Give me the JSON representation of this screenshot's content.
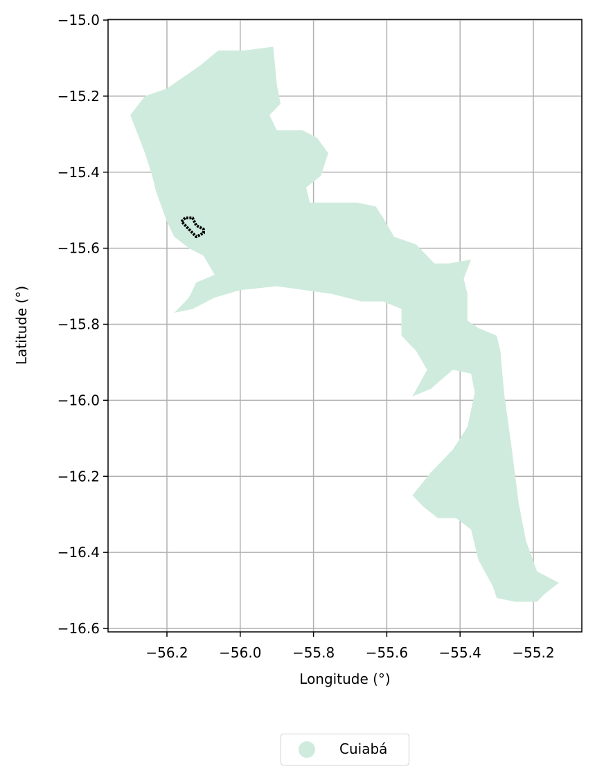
{
  "chart_data": {
    "type": "map",
    "xlabel": "Longitude (°)",
    "ylabel": "Latitude (°)",
    "xlim": [
      -56.37,
      -55.07
    ],
    "ylim": [
      -16.61,
      -15.0
    ],
    "grid": true,
    "x_ticks": [
      -56.2,
      -56.0,
      -55.8,
      -55.6,
      -55.4,
      -55.2
    ],
    "x_tick_labels": [
      "−56.2",
      "−56.0",
      "−55.8",
      "−55.6",
      "−55.4",
      "−55.2"
    ],
    "y_ticks": [
      -15.0,
      -15.2,
      -15.4,
      -15.6,
      -15.8,
      -16.0,
      -16.2,
      -16.4,
      -16.6
    ],
    "y_tick_labels": [
      "−15.0",
      "−15.2",
      "−15.4",
      "−15.6",
      "−15.8",
      "−16.0",
      "−16.2",
      "−16.4",
      "−16.6"
    ],
    "region": {
      "name": "Cuiabá",
      "color": "#cfebdd",
      "boundary": [
        [
          -56.06,
          -15.08
        ],
        [
          -55.99,
          -15.08
        ],
        [
          -55.91,
          -15.07
        ],
        [
          -55.9,
          -15.17
        ],
        [
          -55.89,
          -15.22
        ],
        [
          -55.92,
          -15.25
        ],
        [
          -55.9,
          -15.29
        ],
        [
          -55.83,
          -15.29
        ],
        [
          -55.79,
          -15.31
        ],
        [
          -55.76,
          -15.35
        ],
        [
          -55.78,
          -15.41
        ],
        [
          -55.82,
          -15.44
        ],
        [
          -55.81,
          -15.48
        ],
        [
          -55.68,
          -15.48
        ],
        [
          -55.63,
          -15.49
        ],
        [
          -55.61,
          -15.52
        ],
        [
          -55.58,
          -15.57
        ],
        [
          -55.52,
          -15.59
        ],
        [
          -55.47,
          -15.64
        ],
        [
          -55.43,
          -15.64
        ],
        [
          -55.37,
          -15.63
        ],
        [
          -55.39,
          -15.68
        ],
        [
          -55.38,
          -15.72
        ],
        [
          -55.38,
          -15.79
        ],
        [
          -55.35,
          -15.81
        ],
        [
          -55.3,
          -15.83
        ],
        [
          -55.29,
          -15.87
        ],
        [
          -55.28,
          -15.98
        ],
        [
          -55.26,
          -16.12
        ],
        [
          -55.24,
          -16.27
        ],
        [
          -55.22,
          -16.37
        ],
        [
          -55.19,
          -16.45
        ],
        [
          -55.15,
          -16.47
        ],
        [
          -55.13,
          -16.48
        ],
        [
          -55.17,
          -16.51
        ],
        [
          -55.19,
          -16.53
        ],
        [
          -55.25,
          -16.53
        ],
        [
          -55.3,
          -16.52
        ],
        [
          -55.31,
          -16.49
        ],
        [
          -55.35,
          -16.42
        ],
        [
          -55.37,
          -16.34
        ],
        [
          -55.41,
          -16.31
        ],
        [
          -55.46,
          -16.31
        ],
        [
          -55.5,
          -16.28
        ],
        [
          -55.53,
          -16.25
        ],
        [
          -55.48,
          -16.19
        ],
        [
          -55.42,
          -16.13
        ],
        [
          -55.38,
          -16.07
        ],
        [
          -55.36,
          -15.98
        ],
        [
          -55.37,
          -15.93
        ],
        [
          -55.42,
          -15.92
        ],
        [
          -55.48,
          -15.97
        ],
        [
          -55.53,
          -15.99
        ],
        [
          -55.49,
          -15.92
        ],
        [
          -55.52,
          -15.87
        ],
        [
          -55.56,
          -15.83
        ],
        [
          -55.56,
          -15.76
        ],
        [
          -55.61,
          -15.74
        ],
        [
          -55.67,
          -15.74
        ],
        [
          -55.75,
          -15.72
        ],
        [
          -55.9,
          -15.7
        ],
        [
          -56.0,
          -15.71
        ],
        [
          -56.07,
          -15.73
        ],
        [
          -56.13,
          -15.76
        ],
        [
          -56.18,
          -15.77
        ],
        [
          -56.14,
          -15.73
        ],
        [
          -56.12,
          -15.69
        ],
        [
          -56.07,
          -15.67
        ],
        [
          -56.1,
          -15.62
        ],
        [
          -56.14,
          -15.6
        ],
        [
          -56.18,
          -15.57
        ],
        [
          -56.2,
          -15.53
        ],
        [
          -56.23,
          -15.45
        ],
        [
          -56.24,
          -15.41
        ],
        [
          -56.26,
          -15.35
        ],
        [
          -56.28,
          -15.3
        ],
        [
          -56.3,
          -15.25
        ],
        [
          -56.26,
          -15.2
        ],
        [
          -56.2,
          -15.18
        ],
        [
          -56.11,
          -15.12
        ]
      ]
    },
    "outline": {
      "color": "#000000",
      "points": [
        [
          -56.16,
          -15.53
        ],
        [
          -56.15,
          -15.52
        ],
        [
          -56.13,
          -15.52
        ],
        [
          -56.12,
          -15.54
        ],
        [
          -56.1,
          -15.55
        ],
        [
          -56.1,
          -15.56
        ],
        [
          -56.12,
          -15.57
        ],
        [
          -56.14,
          -15.55
        ],
        [
          -56.16,
          -15.53
        ]
      ]
    },
    "legend": {
      "placement": "below",
      "entries": [
        {
          "label": "Cuiabá",
          "color": "#cfebdd"
        }
      ]
    }
  }
}
